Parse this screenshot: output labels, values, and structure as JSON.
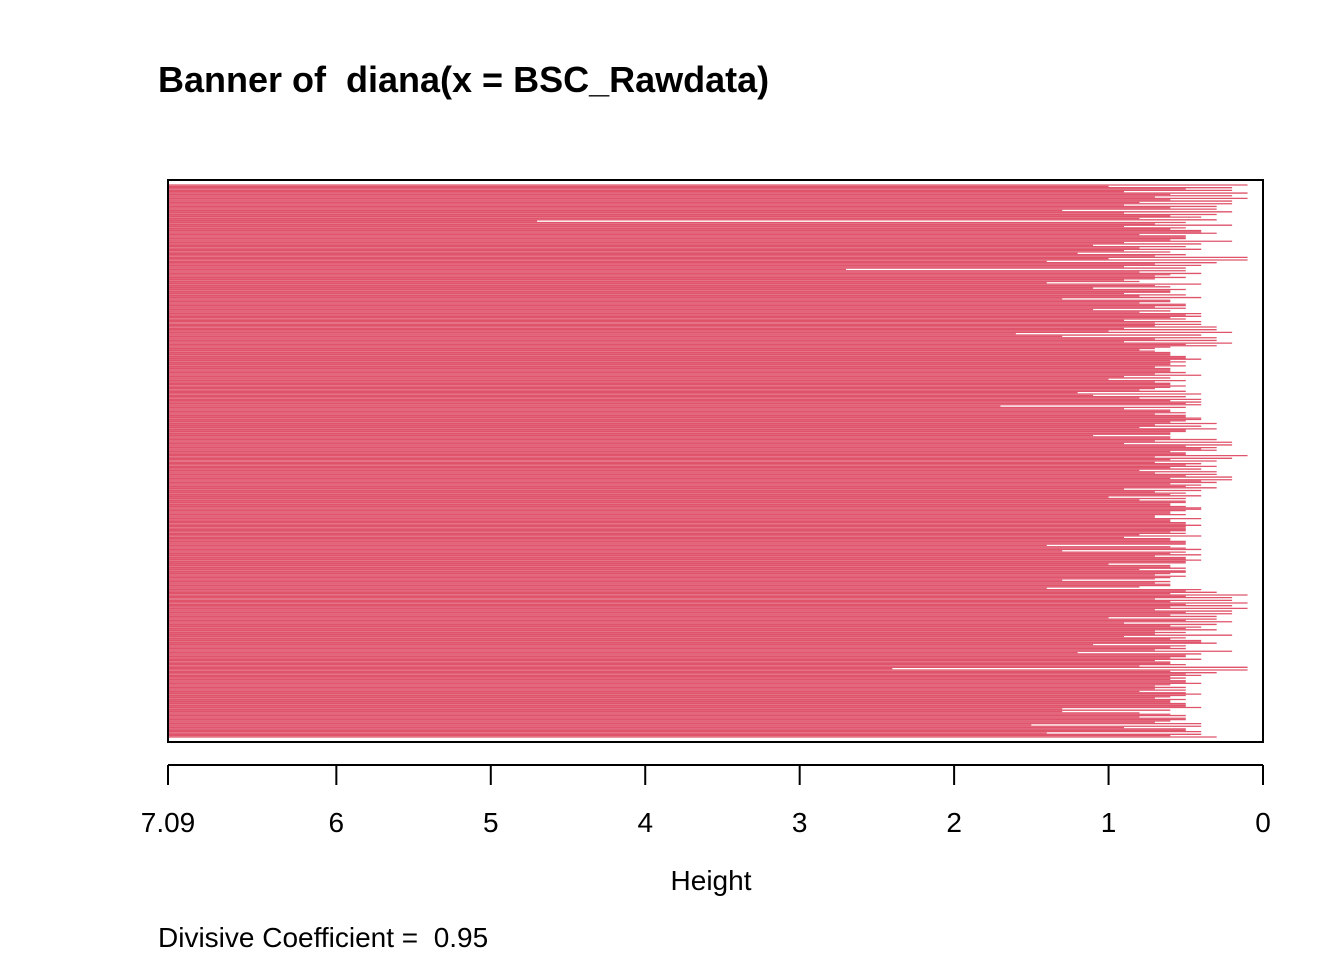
{
  "chart_data": {
    "type": "bar",
    "orientation": "horizontal",
    "title": "Banner of  diana(x = BSC_Rawdata)",
    "xlabel": "Height",
    "ylabel": "",
    "footnote": "Divisive Coefficient =  0.95",
    "xlim": [
      7.09,
      0
    ],
    "x_ticks": [
      "7.09",
      "6",
      "5",
      "4",
      "3",
      "2",
      "1",
      "0"
    ],
    "colors": {
      "bar": "#DF536B",
      "axis": "#000000",
      "background": "#FFFFFF"
    },
    "values": [
      0.1,
      0.2,
      0.2,
      0.1,
      0.2,
      0.1,
      0.2,
      0.2,
      0.3,
      0.3,
      0.2,
      0.3,
      0.4,
      0.3,
      0.5,
      0.2,
      0.5,
      0.4,
      0.3,
      0.5,
      0.5,
      0.2,
      0.4,
      0.5,
      0.4,
      0.6,
      0.5,
      0.1,
      0.1,
      0.3,
      0.4,
      0.5,
      0.5,
      0.4,
      0.7,
      0.7,
      0.8,
      0.4,
      0.6,
      0.5,
      0.6,
      0.5,
      0.4,
      0.6,
      0.8,
      0.5,
      0.5,
      0.6,
      0.4,
      0.4,
      0.5,
      0.4,
      0.4,
      0.3,
      0.3,
      0.2,
      0.4,
      0.3,
      0.3,
      0.2,
      0.3,
      0.7,
      0.7,
      0.6,
      0.5,
      0.4,
      0.5,
      0.6,
      0.7,
      0.6,
      0.5,
      0.4,
      0.6,
      0.5,
      0.6,
      0.5,
      0.7,
      0.5,
      0.4,
      0.5,
      0.4,
      0.4,
      0.4,
      0.5,
      0.6,
      0.5,
      0.5,
      0.4,
      0.5,
      0.3,
      0.4,
      0.3,
      0.5,
      0.6,
      0.6,
      0.3,
      0.2,
      0.2,
      0.3,
      0.3,
      0.5,
      0.1,
      0.2,
      0.3,
      0.4,
      0.3,
      0.4,
      0.3,
      0.3,
      0.2,
      0.2,
      0.3,
      0.4,
      0.3,
      0.4,
      0.5,
      0.4,
      0.5,
      0.5,
      0.6,
      0.5,
      0.4,
      0.6,
      0.5,
      0.7,
      0.6,
      0.5,
      0.4,
      0.5,
      0.5,
      0.5,
      0.4,
      0.6,
      0.5,
      0.5,
      0.6,
      0.4,
      0.5,
      0.4,
      0.5,
      0.4,
      0.5,
      0.6,
      0.5,
      0.5,
      0.6,
      0.5,
      0.7,
      0.6,
      0.6,
      0.8,
      0.4,
      0.3
    ],
    "boundaries": [
      1.0,
      0.5,
      0.9,
      0.6,
      0.7,
      0.6,
      0.8,
      0.9,
      0.6,
      1.3,
      0.9,
      0.6,
      0.8,
      4.7,
      0.7,
      0.9,
      0.6,
      0.4,
      0.8,
      0.5,
      0.6,
      0.9,
      1.1,
      0.8,
      0.9,
      1.2,
      0.7,
      1.0,
      1.4,
      0.7,
      0.9,
      2.7,
      0.8,
      0.6,
      0.5,
      0.9,
      1.4,
      0.7,
      1.1,
      0.6,
      0.9,
      0.8,
      1.3,
      0.6,
      0.5,
      0.7,
      1.1,
      0.8,
      0.5,
      0.6,
      0.9,
      0.7,
      0.7,
      0.9,
      1.0,
      1.6,
      1.3,
      0.7,
      0.9,
      0.5,
      0.6,
      0.8,
      0.6,
      0.6,
      0.5,
      0.6,
      0.6,
      0.5,
      0.6,
      0.6,
      0.7,
      0.9,
      1.0,
      0.7,
      0.6,
      0.6,
      0.8,
      1.2,
      1.1,
      0.8,
      0.6,
      0.5,
      1.7,
      0.9,
      0.6,
      0.7,
      0.5,
      0.4,
      0.6,
      0.7,
      0.8,
      0.5,
      0.6,
      1.1,
      0.6,
      0.7,
      0.9,
      0.5,
      0.4,
      0.6,
      0.5,
      0.7,
      0.6,
      0.7,
      0.5,
      0.6,
      0.8,
      0.7,
      0.5,
      0.6,
      0.4,
      0.6,
      0.5,
      0.9,
      0.7,
      0.6,
      1.0,
      0.8,
      0.5,
      0.6,
      0.4,
      0.5,
      0.6,
      0.7,
      0.4,
      0.6,
      0.5,
      0.5,
      0.5,
      0.6,
      0.8,
      0.9,
      0.6,
      0.5,
      1.4,
      0.5,
      1.3,
      0.6,
      0.7,
      0.5,
      0.5,
      1.0,
      0.6,
      0.8,
      0.5,
      0.7,
      0.6,
      1.3,
      0.7,
      0.6,
      1.4,
      0.5,
      0.6,
      0.5,
      0.7,
      0.6,
      0.5,
      0.6,
      0.7,
      0.5,
      0.6,
      1.0,
      0.5,
      0.9,
      0.6,
      0.5,
      0.7,
      0.7,
      0.9,
      0.6,
      0.4,
      1.1,
      0.6,
      0.7,
      1.2,
      0.5,
      0.6,
      0.7,
      0.6,
      0.8,
      2.4,
      0.6,
      0.5,
      0.6,
      0.6,
      0.5,
      0.6,
      0.5,
      0.5,
      0.5,
      0.5,
      0.7,
      0.6,
      0.5,
      0.5,
      1.3,
      1.3,
      0.6,
      0.8,
      0.5,
      0.7,
      1.5,
      0.9,
      0.5,
      1.4,
      0.6
    ]
  }
}
